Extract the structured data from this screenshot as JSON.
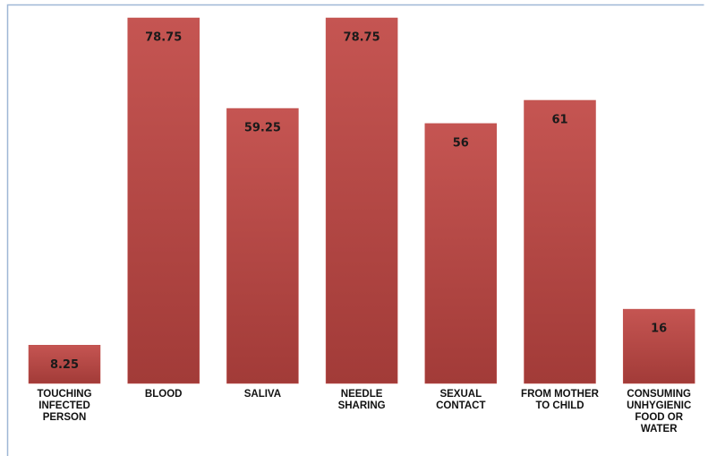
{
  "chart_data": {
    "type": "bar",
    "categories": [
      "TOUCHING\nINFECTED\nPERSON",
      "BLOOD",
      "SALIVA",
      "NEEDLE\nSHARING",
      "SEXUAL\nCONTACT",
      "FROM MOTHER\nTO CHILD",
      "CONSUMING\nUNHYGIENIC\nFOOD OR\nWATER"
    ],
    "values": [
      8.25,
      78.75,
      59.25,
      78.75,
      56,
      61,
      16
    ],
    "color": "#c0504d"
  }
}
